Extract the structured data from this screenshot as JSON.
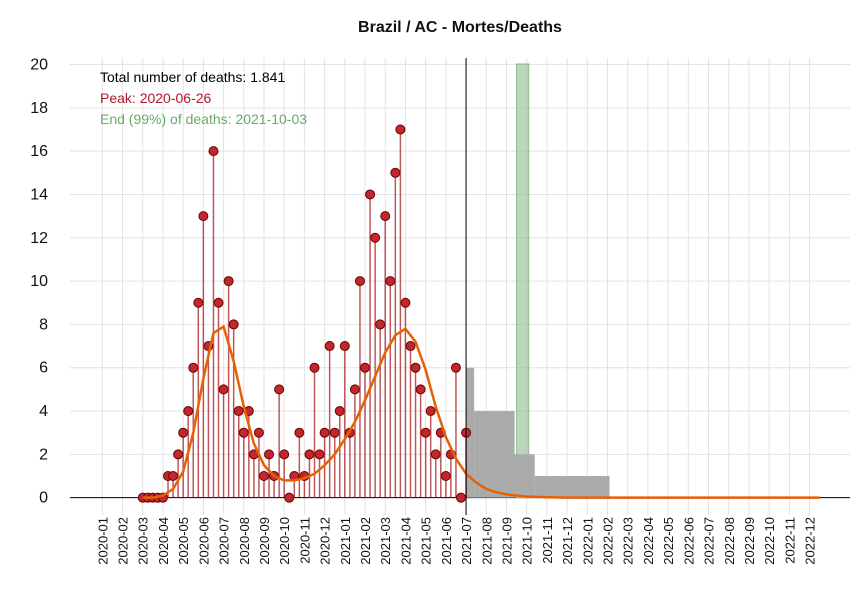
{
  "chart_data": {
    "type": "line",
    "title": "Brazil / AC - Mortes/Deaths",
    "annotations": [
      {
        "text": "Total number of deaths: 1.841",
        "color": "#000000"
      },
      {
        "text": "Peak: 2020-06-26",
        "color": "#b2182b"
      },
      {
        "text": "End (99%) of deaths: 2021-10-03",
        "color": "#6aaa6a"
      }
    ],
    "xlim": [
      -1.6,
      37.0
    ],
    "ylim": [
      -0.8,
      20.3
    ],
    "yticks": [
      0,
      2,
      4,
      6,
      8,
      10,
      12,
      14,
      16,
      18,
      20
    ],
    "xticks": [
      {
        "value": 0,
        "label": "2020-01"
      },
      {
        "value": 1,
        "label": "2020-02"
      },
      {
        "value": 2,
        "label": "2020-03"
      },
      {
        "value": 3,
        "label": "2020-04"
      },
      {
        "value": 4,
        "label": "2020-05"
      },
      {
        "value": 5,
        "label": "2020-06"
      },
      {
        "value": 6,
        "label": "2020-07"
      },
      {
        "value": 7,
        "label": "2020-08"
      },
      {
        "value": 8,
        "label": "2020-09"
      },
      {
        "value": 9,
        "label": "2020-10"
      },
      {
        "value": 10,
        "label": "2020-11"
      },
      {
        "value": 11,
        "label": "2020-12"
      },
      {
        "value": 12,
        "label": "2021-01"
      },
      {
        "value": 13,
        "label": "2021-02"
      },
      {
        "value": 14,
        "label": "2021-03"
      },
      {
        "value": 15,
        "label": "2021-04"
      },
      {
        "value": 16,
        "label": "2021-05"
      },
      {
        "value": 17,
        "label": "2021-06"
      },
      {
        "value": 18,
        "label": "2021-07"
      },
      {
        "value": 19,
        "label": "2021-08"
      },
      {
        "value": 20,
        "label": "2021-09"
      },
      {
        "value": 21,
        "label": "2021-10"
      },
      {
        "value": 22,
        "label": "2021-11"
      },
      {
        "value": 23,
        "label": "2021-12"
      },
      {
        "value": 24,
        "label": "2022-01"
      },
      {
        "value": 25,
        "label": "2022-02"
      },
      {
        "value": 26,
        "label": "2022-03"
      },
      {
        "value": 27,
        "label": "2022-04"
      },
      {
        "value": 28,
        "label": "2022-05"
      },
      {
        "value": 29,
        "label": "2022-06"
      },
      {
        "value": 30,
        "label": "2022-07"
      },
      {
        "value": 31,
        "label": "2022-08"
      },
      {
        "value": 32,
        "label": "2022-09"
      },
      {
        "value": 33,
        "label": "2022-10"
      },
      {
        "value": 34,
        "label": "2022-11"
      },
      {
        "value": 35,
        "label": "2022-12"
      }
    ],
    "grid": true,
    "today_line": 18.0,
    "end_band": [
      20.5,
      21.1
    ],
    "end_band_color": "#8fbc8f",
    "series": [
      {
        "mark": "bars",
        "color": "#aaaaaa",
        "bins": [
          18.0,
          18.4,
          20.4,
          21.4,
          25.1
        ],
        "values": [
          6,
          4,
          2,
          1
        ]
      },
      {
        "mark": "points",
        "color": "#a50f15",
        "x": [
          2.0,
          2.25,
          2.5,
          2.75,
          3.0,
          3.25,
          3.5,
          3.75,
          4.0,
          4.25,
          4.5,
          4.75,
          5.0,
          5.25,
          5.5,
          5.75,
          6.0,
          6.25,
          6.5,
          6.75,
          7.0,
          7.25,
          7.5,
          7.75,
          8.0,
          8.25,
          8.5,
          8.75,
          9.0,
          9.25,
          9.5,
          9.75,
          10.0,
          10.25,
          10.5,
          10.75,
          11.0,
          11.25,
          11.5,
          11.75,
          12.0,
          12.25,
          12.5,
          12.75,
          13.0,
          13.25,
          13.5,
          13.75,
          14.0,
          14.25,
          14.5,
          14.75,
          15.0,
          15.25,
          15.5,
          15.75,
          16.0,
          16.25,
          16.5,
          16.75,
          17.0,
          17.25,
          17.5,
          17.75,
          18.0
        ],
        "values": [
          0,
          0,
          0,
          0,
          0,
          1,
          1,
          2,
          3,
          4,
          6,
          9,
          13,
          7,
          16,
          9,
          5,
          10,
          8,
          4,
          3,
          4,
          2,
          3,
          1,
          2,
          1,
          5,
          2,
          0,
          1,
          3,
          1,
          2,
          6,
          2,
          3,
          7,
          3,
          4,
          7,
          3,
          5,
          10,
          6,
          14,
          12,
          8,
          13,
          10,
          15,
          17,
          9,
          7,
          6,
          5,
          3,
          4,
          2,
          3,
          1,
          2,
          6,
          0,
          3
        ]
      },
      {
        "mark": "line",
        "color": "#e66101",
        "x": [
          2.0,
          2.5,
          3.0,
          3.5,
          4.0,
          4.5,
          5.0,
          5.5,
          6.0,
          6.5,
          7.0,
          7.5,
          8.0,
          8.5,
          9.0,
          9.5,
          10.0,
          10.5,
          11.0,
          11.5,
          12.0,
          12.5,
          13.0,
          13.5,
          14.0,
          14.5,
          15.0,
          15.5,
          16.0,
          16.5,
          17.0,
          17.5,
          18.0,
          18.5,
          19.0,
          19.5,
          20.0,
          21.0,
          22.0,
          23.0,
          25.0,
          30.0,
          35.5
        ],
        "values": [
          0,
          0,
          0.1,
          0.4,
          1.2,
          3.0,
          5.5,
          7.6,
          7.9,
          6.3,
          4.2,
          2.5,
          1.5,
          1.0,
          0.8,
          0.8,
          0.9,
          1.1,
          1.5,
          2.0,
          2.7,
          3.5,
          4.5,
          5.6,
          6.7,
          7.5,
          7.8,
          7.2,
          5.9,
          4.2,
          2.8,
          1.8,
          1.1,
          0.7,
          0.4,
          0.25,
          0.15,
          0.05,
          0.02,
          0,
          0,
          0,
          0
        ]
      }
    ]
  }
}
